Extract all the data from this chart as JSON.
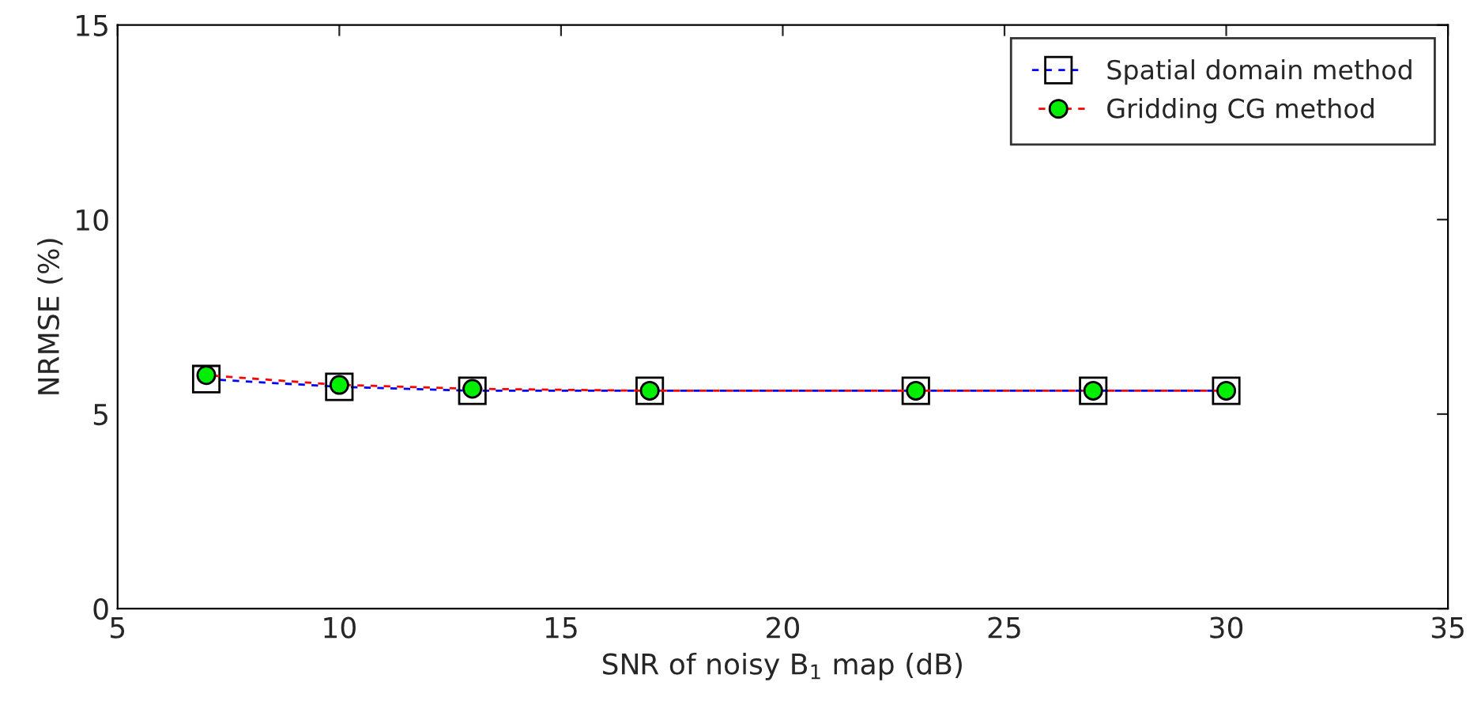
{
  "chart_data": {
    "type": "line",
    "xlabel": "SNR of noisy B$_{1}$ map (dB)",
    "ylabel": "NRMSE (%)",
    "x": [
      7,
      10,
      13,
      17,
      23,
      27,
      30
    ],
    "series": [
      {
        "name": "Spatial domain method",
        "color": "#0000ff",
        "marker": "square",
        "values": [
          5.9,
          5.7,
          5.6,
          5.6,
          5.6,
          5.6,
          5.6
        ]
      },
      {
        "name": "Gridding CG method",
        "color": "#ff0000",
        "marker": "circle",
        "values": [
          6.0,
          5.75,
          5.65,
          5.6,
          5.6,
          5.6,
          5.6
        ]
      }
    ],
    "xlim": [
      5,
      35
    ],
    "xticks": [
      5,
      10,
      15,
      20,
      25,
      30,
      35
    ],
    "ylim": [
      0,
      15
    ],
    "yticks": [
      0,
      5,
      10,
      15
    ],
    "line_style": "dashed",
    "grid": false,
    "legend": "top right"
  }
}
